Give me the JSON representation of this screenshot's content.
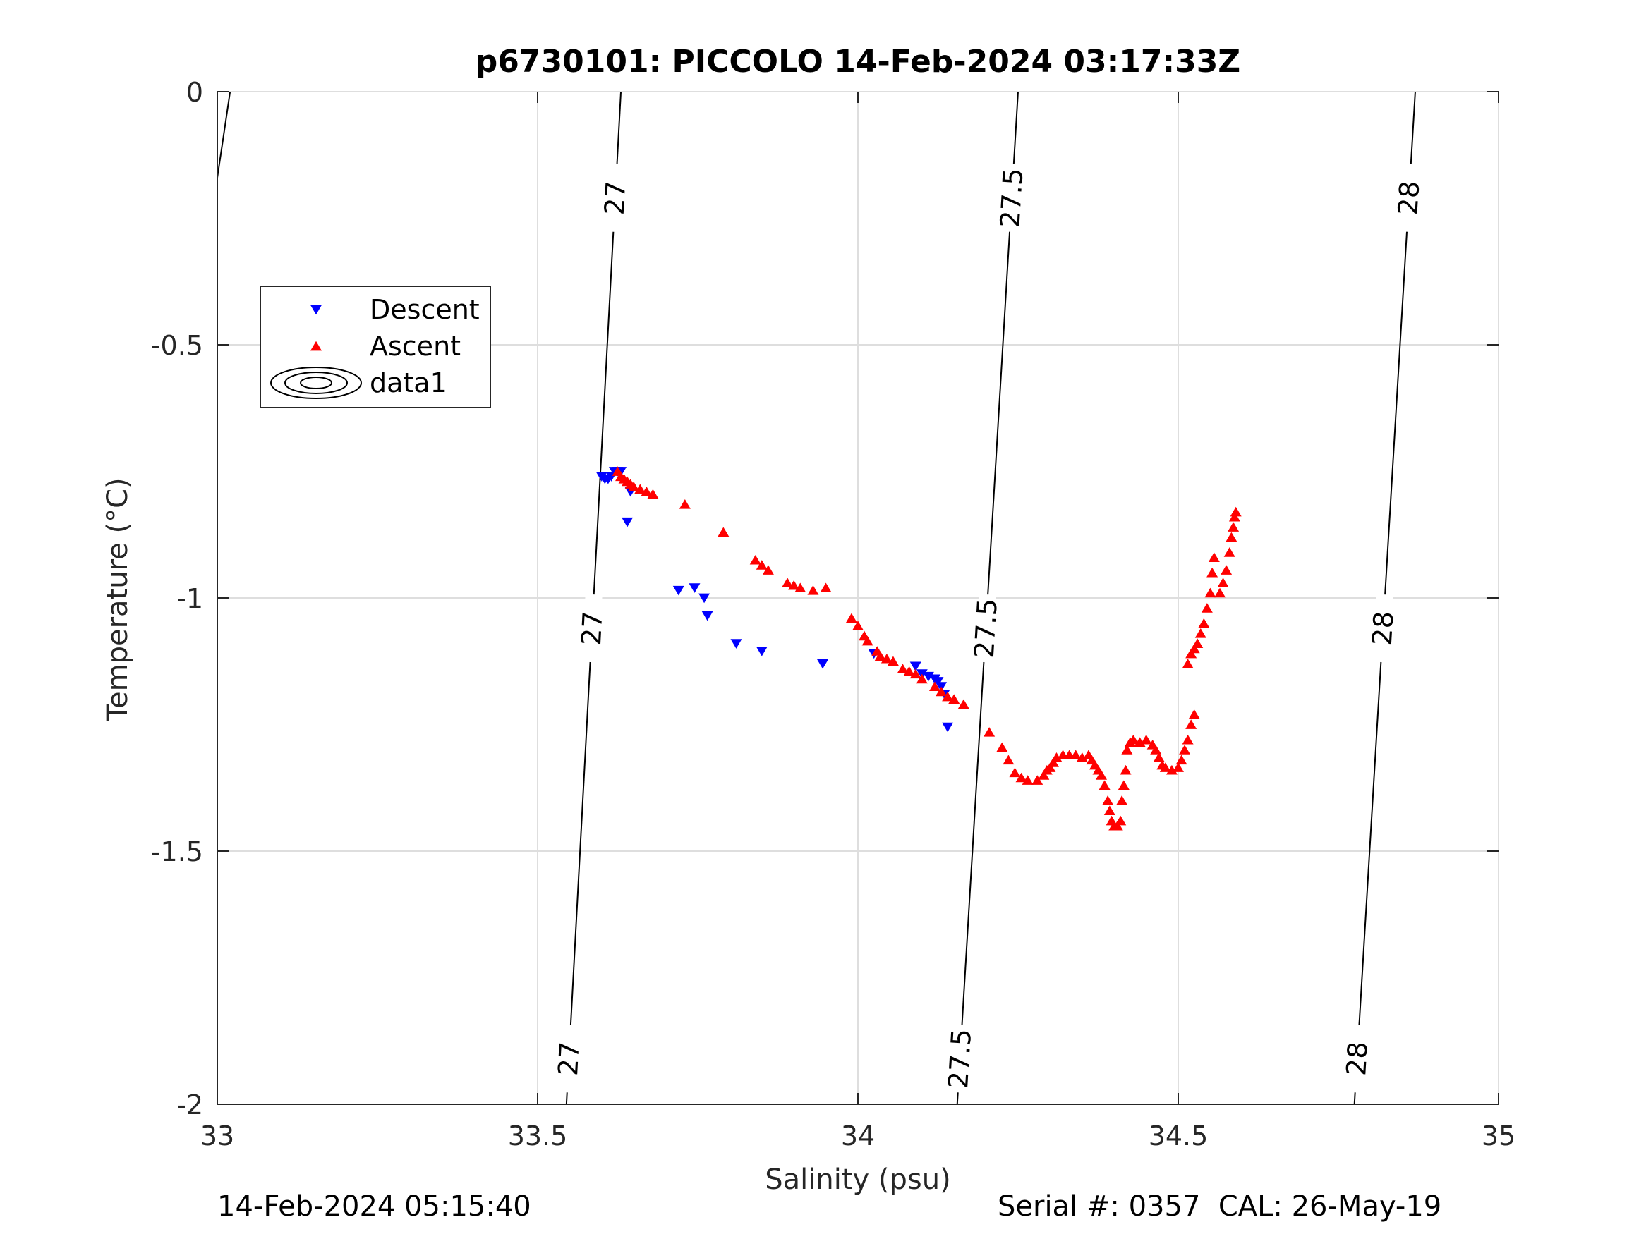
{
  "chart_data": {
    "type": "scatter",
    "title": "p6730101: PICCOLO 14-Feb-2024 03:17:33Z",
    "xlabel": "Salinity (psu)",
    "ylabel": "Temperature (°C)",
    "xlim": [
      33,
      35
    ],
    "ylim": [
      -2,
      0
    ],
    "xticks": [
      "33",
      "33.5",
      "34",
      "34.5",
      "35"
    ],
    "yticks": [
      "0",
      "-0.5",
      "-1",
      "-1.5",
      "-2"
    ],
    "grid": true,
    "legend_position": "upper-left",
    "series": [
      {
        "name": "Descent",
        "marker": "triangle-down",
        "color": "#0000ff",
        "points": [
          [
            33.6,
            -0.76
          ],
          [
            33.605,
            -0.765
          ],
          [
            33.61,
            -0.765
          ],
          [
            33.615,
            -0.76
          ],
          [
            33.62,
            -0.75
          ],
          [
            33.625,
            -0.75
          ],
          [
            33.63,
            -0.75
          ],
          [
            33.64,
            -0.85
          ],
          [
            33.645,
            -0.79
          ],
          [
            33.72,
            -0.985
          ],
          [
            33.745,
            -0.98
          ],
          [
            33.76,
            -1.0
          ],
          [
            33.765,
            -1.035
          ],
          [
            33.81,
            -1.09
          ],
          [
            33.85,
            -1.105
          ],
          [
            33.945,
            -1.13
          ],
          [
            34.025,
            -1.11
          ],
          [
            34.09,
            -1.135
          ],
          [
            34.1,
            -1.15
          ],
          [
            34.11,
            -1.155
          ],
          [
            34.12,
            -1.16
          ],
          [
            34.125,
            -1.165
          ],
          [
            34.13,
            -1.175
          ],
          [
            34.135,
            -1.19
          ],
          [
            34.14,
            -1.255
          ]
        ]
      },
      {
        "name": "Ascent",
        "marker": "triangle-up",
        "color": "#ff0000",
        "points": [
          [
            33.625,
            -0.75
          ],
          [
            33.63,
            -0.76
          ],
          [
            33.635,
            -0.765
          ],
          [
            33.64,
            -0.77
          ],
          [
            33.645,
            -0.775
          ],
          [
            33.65,
            -0.78
          ],
          [
            33.66,
            -0.785
          ],
          [
            33.67,
            -0.79
          ],
          [
            33.68,
            -0.795
          ],
          [
            33.73,
            -0.815
          ],
          [
            33.79,
            -0.87
          ],
          [
            33.84,
            -0.925
          ],
          [
            33.85,
            -0.935
          ],
          [
            33.86,
            -0.945
          ],
          [
            33.89,
            -0.97
          ],
          [
            33.9,
            -0.975
          ],
          [
            33.91,
            -0.98
          ],
          [
            33.93,
            -0.985
          ],
          [
            33.95,
            -0.98
          ],
          [
            33.99,
            -1.04
          ],
          [
            34.0,
            -1.055
          ],
          [
            34.01,
            -1.075
          ],
          [
            34.015,
            -1.085
          ],
          [
            34.03,
            -1.105
          ],
          [
            34.035,
            -1.115
          ],
          [
            34.045,
            -1.12
          ],
          [
            34.055,
            -1.125
          ],
          [
            34.07,
            -1.14
          ],
          [
            34.08,
            -1.145
          ],
          [
            34.09,
            -1.15
          ],
          [
            34.1,
            -1.16
          ],
          [
            34.12,
            -1.175
          ],
          [
            34.13,
            -1.185
          ],
          [
            34.14,
            -1.195
          ],
          [
            34.15,
            -1.2
          ],
          [
            34.165,
            -1.21
          ],
          [
            34.205,
            -1.265
          ],
          [
            34.225,
            -1.295
          ],
          [
            34.235,
            -1.32
          ],
          [
            34.245,
            -1.345
          ],
          [
            34.255,
            -1.355
          ],
          [
            34.265,
            -1.36
          ],
          [
            34.28,
            -1.36
          ],
          [
            34.29,
            -1.35
          ],
          [
            34.295,
            -1.34
          ],
          [
            34.3,
            -1.335
          ],
          [
            34.305,
            -1.325
          ],
          [
            34.31,
            -1.315
          ],
          [
            34.32,
            -1.31
          ],
          [
            34.33,
            -1.31
          ],
          [
            34.34,
            -1.31
          ],
          [
            34.35,
            -1.315
          ],
          [
            34.36,
            -1.31
          ],
          [
            34.365,
            -1.32
          ],
          [
            34.37,
            -1.33
          ],
          [
            34.375,
            -1.34
          ],
          [
            34.38,
            -1.35
          ],
          [
            34.385,
            -1.37
          ],
          [
            34.39,
            -1.4
          ],
          [
            34.393,
            -1.42
          ],
          [
            34.396,
            -1.44
          ],
          [
            34.4,
            -1.45
          ],
          [
            34.405,
            -1.45
          ],
          [
            34.41,
            -1.44
          ],
          [
            34.412,
            -1.4
          ],
          [
            34.415,
            -1.37
          ],
          [
            34.418,
            -1.34
          ],
          [
            34.42,
            -1.3
          ],
          [
            34.425,
            -1.285
          ],
          [
            34.43,
            -1.28
          ],
          [
            34.44,
            -1.285
          ],
          [
            34.45,
            -1.28
          ],
          [
            34.46,
            -1.29
          ],
          [
            34.465,
            -1.3
          ],
          [
            34.47,
            -1.315
          ],
          [
            34.475,
            -1.33
          ],
          [
            34.48,
            -1.335
          ],
          [
            34.49,
            -1.34
          ],
          [
            34.5,
            -1.335
          ],
          [
            34.505,
            -1.32
          ],
          [
            34.51,
            -1.3
          ],
          [
            34.515,
            -1.28
          ],
          [
            34.52,
            -1.25
          ],
          [
            34.525,
            -1.23
          ],
          [
            34.515,
            -1.13
          ],
          [
            34.52,
            -1.11
          ],
          [
            34.525,
            -1.1
          ],
          [
            34.53,
            -1.09
          ],
          [
            34.535,
            -1.07
          ],
          [
            34.54,
            -1.05
          ],
          [
            34.545,
            -1.02
          ],
          [
            34.55,
            -0.99
          ],
          [
            34.553,
            -0.95
          ],
          [
            34.556,
            -0.92
          ],
          [
            34.565,
            -0.99
          ],
          [
            34.57,
            -0.97
          ],
          [
            34.575,
            -0.945
          ],
          [
            34.58,
            -0.91
          ],
          [
            34.583,
            -0.88
          ],
          [
            34.586,
            -0.86
          ],
          [
            34.588,
            -0.84
          ],
          [
            34.59,
            -0.83
          ]
        ]
      }
    ],
    "contours": {
      "legend_label": "data1",
      "levels": [
        {
          "value": 27,
          "label": "27",
          "salinity_at_top": 33.63,
          "salinity_at_bottom": 33.545
        },
        {
          "value": 27.5,
          "label": "27.5",
          "salinity_at_top": 34.25,
          "salinity_at_bottom": 34.155
        },
        {
          "value": 28,
          "label": "28",
          "salinity_at_top": 34.87,
          "salinity_at_bottom": 34.775
        }
      ]
    }
  },
  "footer": {
    "left": "14-Feb-2024 05:15:40",
    "right": "Serial #: 0357  CAL: 26-May-19"
  }
}
